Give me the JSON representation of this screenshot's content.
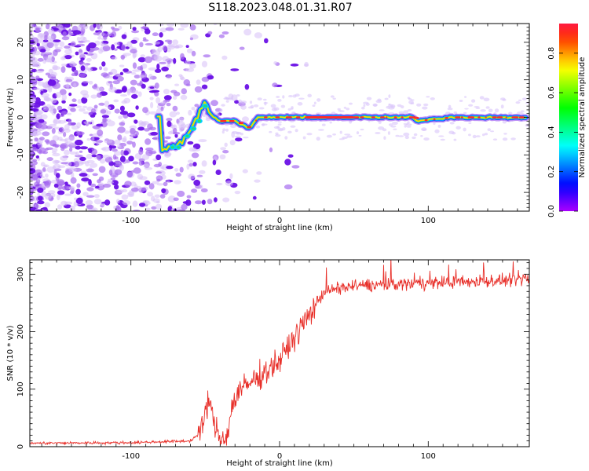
{
  "title": "S118.2023.048.01.31.R07",
  "chart_data": [
    {
      "type": "heatmap",
      "name": "spectrogram",
      "xlabel": "Height of straight line (km)",
      "ylabel": "Frequency (Hz)",
      "xlim": [
        -168,
        168
      ],
      "ylim": [
        -25,
        25
      ],
      "xticks": [
        -100,
        0,
        100
      ],
      "xtick_labels": [
        "-100",
        "0",
        "100"
      ],
      "yticks": [
        -20,
        -10,
        0,
        10,
        20
      ],
      "ytick_labels": [
        "-20",
        "-10",
        "0",
        "10",
        "20"
      ],
      "colorbar": {
        "label": "Normalized spectral amplitude",
        "range": [
          0.0,
          0.95
        ],
        "ticks": [
          0.0,
          0.2,
          0.4,
          0.6,
          0.8
        ],
        "tick_labels": [
          "0.0",
          "0.2",
          "0.4",
          "0.6",
          "0.8"
        ]
      },
      "signal_track": [
        {
          "x": -80,
          "f": -8
        },
        {
          "x": -70,
          "f": -8
        },
        {
          "x": -65,
          "f": -6
        },
        {
          "x": -60,
          "f": -3
        },
        {
          "x": -55,
          "f": 0
        },
        {
          "x": -50,
          "f": 4
        },
        {
          "x": -45,
          "f": 0
        },
        {
          "x": -40,
          "f": -1
        },
        {
          "x": -30,
          "f": -1
        },
        {
          "x": -20,
          "f": -3
        },
        {
          "x": -15,
          "f": 0
        },
        {
          "x": 15,
          "f": 0
        },
        {
          "x": 90,
          "f": 0
        },
        {
          "x": 92,
          "f": -1
        },
        {
          "x": 115,
          "f": 0
        },
        {
          "x": 165,
          "f": 0
        }
      ]
    },
    {
      "type": "line",
      "name": "snr",
      "xlabel": "Height of straight line (km)",
      "ylabel": "SNR (10 * v/v)",
      "xlim": [
        -168,
        168
      ],
      "ylim": [
        0,
        325
      ],
      "xticks": [
        -100,
        0,
        100
      ],
      "xtick_labels": [
        "-100",
        "0",
        "100"
      ],
      "yticks": [
        0,
        100,
        200,
        300
      ],
      "ytick_labels": [
        "0",
        "100",
        "200",
        "300"
      ],
      "color": "#e8302a",
      "profile": {
        "x": [
          -168,
          -100,
          -60,
          -53,
          -50,
          -48,
          -44,
          -40,
          -35,
          -32,
          -28,
          -20,
          -10,
          0,
          10,
          20,
          30,
          50,
          100,
          168
        ],
        "y": [
          6,
          7,
          10,
          25,
          55,
          85,
          40,
          15,
          20,
          70,
          95,
          110,
          130,
          150,
          190,
          230,
          270,
          280,
          285,
          290
        ]
      }
    }
  ]
}
